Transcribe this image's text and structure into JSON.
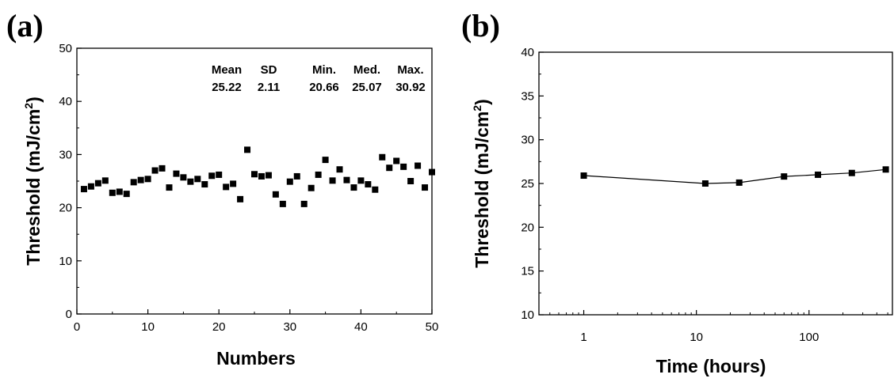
{
  "chart_data": [
    {
      "type": "scatter",
      "panel_label": "(a)",
      "xlabel": "Numbers",
      "ylabel": "Threshold (mJ/cm",
      "ylabel_sup": "2",
      "ylabel_close": ")",
      "xlim": [
        0,
        50
      ],
      "ylim": [
        0,
        50
      ],
      "xticks": [
        0,
        10,
        20,
        30,
        40,
        50
      ],
      "yticks": [
        0,
        10,
        20,
        30,
        40,
        50
      ],
      "x": [
        1,
        2,
        3,
        4,
        5,
        6,
        7,
        8,
        9,
        10,
        11,
        12,
        13,
        14,
        15,
        16,
        17,
        18,
        19,
        20,
        21,
        22,
        23,
        24,
        25,
        26,
        27,
        28,
        29,
        30,
        31,
        32,
        33,
        34,
        35,
        36,
        37,
        38,
        39,
        40,
        41,
        42,
        43,
        44,
        45,
        46,
        47,
        48,
        49,
        50
      ],
      "y": [
        23.5,
        24.0,
        24.6,
        25.1,
        22.8,
        23.0,
        22.6,
        24.8,
        25.2,
        25.4,
        27.0,
        27.4,
        23.8,
        26.4,
        25.7,
        24.9,
        25.4,
        24.4,
        26.0,
        26.2,
        23.9,
        24.5,
        21.6,
        30.9,
        26.3,
        25.9,
        26.1,
        22.5,
        20.7,
        24.9,
        25.9,
        20.7,
        23.7,
        26.2,
        29.0,
        25.1,
        27.2,
        25.2,
        23.8,
        25.1,
        24.4,
        23.4,
        29.5,
        27.5,
        28.8,
        27.7,
        25.0,
        27.9,
        23.8,
        26.7
      ],
      "stats": [
        {
          "label": "Mean",
          "value": "25.22"
        },
        {
          "label": "SD",
          "value": "2.11"
        },
        {
          "label": "Min.",
          "value": "20.66"
        },
        {
          "label": "Med.",
          "value": "25.07"
        },
        {
          "label": "Max.",
          "value": "30.92"
        }
      ]
    },
    {
      "type": "line",
      "panel_label": "(b)",
      "xlabel": "Time (hours)",
      "ylabel": "Threshold (mJ/cm",
      "ylabel_sup": "2",
      "ylabel_close": ")",
      "xscale": "log",
      "xlim": [
        0.4,
        550
      ],
      "ylim": [
        10,
        40
      ],
      "xticks": [
        1,
        10,
        100
      ],
      "yticks": [
        10,
        15,
        20,
        25,
        30,
        35,
        40
      ],
      "x": [
        1,
        12,
        24,
        60,
        120,
        240,
        480
      ],
      "y": [
        25.9,
        25.0,
        25.1,
        25.8,
        26.0,
        26.2,
        26.6
      ]
    }
  ]
}
